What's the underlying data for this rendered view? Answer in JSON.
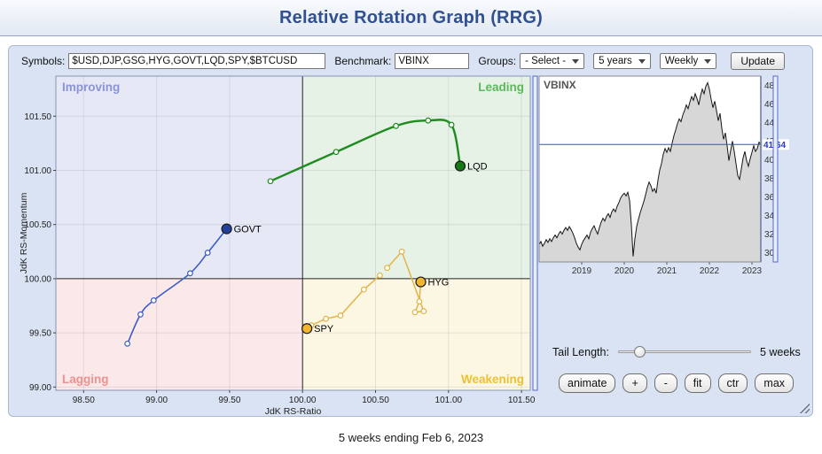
{
  "header": {
    "title": "Relative Rotation Graph (RRG)"
  },
  "toolbar": {
    "symbols_label": "Symbols:",
    "symbols_value": "$USD,DJP,GSG,HYG,GOVT,LQD,SPY,$BTCUSD",
    "benchmark_label": "Benchmark:",
    "benchmark_value": "VBINX",
    "groups_label": "Groups:",
    "groups_value": "- Select -",
    "period_value": "5 years",
    "interval_value": "Weekly",
    "update_label": "Update"
  },
  "chart_data": [
    {
      "type": "scatter",
      "title": "Relative Rotation Graph",
      "xlabel": "JdK RS-Ratio",
      "ylabel": "JdK RS-Momentum",
      "xlim": [
        98.31,
        101.56
      ],
      "ylim": [
        98.97,
        101.87
      ],
      "xticks": [
        98.5,
        99.0,
        99.5,
        100.0,
        100.5,
        101.0,
        101.5
      ],
      "yticks": [
        99.0,
        99.5,
        100.0,
        100.5,
        101.0,
        101.5
      ],
      "center": [
        100.0,
        100.0
      ],
      "quadrants": [
        {
          "name": "Improving",
          "position": "top-left",
          "color": "#e6e9f5",
          "label_color": "#8a93d8"
        },
        {
          "name": "Leading",
          "position": "top-right",
          "color": "#e6f2e6",
          "label_color": "#5cb85c"
        },
        {
          "name": "Lagging",
          "position": "bottom-left",
          "color": "#fbe8e8",
          "label_color": "#f09090"
        },
        {
          "name": "Weakening",
          "position": "bottom-right",
          "color": "#fcf7e2",
          "label_color": "#eec034"
        }
      ],
      "series": [
        {
          "name": "LQD",
          "color": "#1f8c1f",
          "dot_color": "#157a15",
          "width": 2.4,
          "smooth": true,
          "x": [
            99.78,
            100.23,
            100.64,
            100.86,
            101.02,
            101.08
          ],
          "y": [
            100.9,
            101.17,
            101.41,
            101.46,
            101.42,
            101.04
          ]
        },
        {
          "name": "GOVT",
          "color": "#3a5cc4",
          "dot_color": "#24409a",
          "width": 1.6,
          "smooth": true,
          "x": [
            98.8,
            98.89,
            98.98,
            99.23,
            99.35,
            99.48
          ],
          "y": [
            99.4,
            99.67,
            99.8,
            100.05,
            100.24,
            100.46
          ]
        },
        {
          "name": "HYG",
          "color": "#e2b34a",
          "dot_color": "#f0b62f",
          "width": 1.5,
          "smooth": false,
          "x": [
            100.58,
            100.68,
            100.83,
            100.77,
            100.8,
            100.81
          ],
          "y": [
            100.1,
            100.25,
            99.7,
            99.69,
            99.79,
            99.97
          ]
        },
        {
          "name": "SPY",
          "color": "#e2b34a",
          "dot_color": "#f0b62f",
          "width": 1.5,
          "smooth": false,
          "x": [
            100.53,
            100.42,
            100.26,
            100.16,
            100.06,
            100.03
          ],
          "y": [
            100.03,
            99.9,
            99.66,
            99.63,
            99.57,
            99.54
          ]
        }
      ]
    },
    {
      "type": "area",
      "title": "VBINX",
      "ylim": [
        29,
        49
      ],
      "yticks": [
        30,
        32,
        34,
        36,
        38,
        40,
        42,
        44,
        46,
        48
      ],
      "year_ticks": [
        {
          "index": 24,
          "label": "2019"
        },
        {
          "index": 48,
          "label": "2020"
        },
        {
          "index": 72,
          "label": "2021"
        },
        {
          "index": 96,
          "label": "2022"
        },
        {
          "index": 120,
          "label": "2023"
        }
      ],
      "last_price": 41.64,
      "values": [
        30.9,
        31.2,
        30.7,
        31.0,
        31.4,
        31.1,
        31.5,
        31.2,
        31.6,
        31.9,
        31.6,
        32.0,
        32.3,
        32.0,
        32.4,
        32.7,
        32.4,
        32.8,
        32.5,
        32.1,
        31.6,
        31.0,
        30.6,
        30.3,
        30.9,
        31.3,
        31.6,
        31.9,
        31.5,
        32.2,
        32.6,
        32.9,
        32.4,
        32.0,
        32.7,
        33.3,
        33.7,
        33.4,
        33.9,
        34.2,
        33.8,
        34.4,
        34.7,
        34.4,
        35.0,
        35.4,
        35.9,
        36.2,
        36.4,
        36.1,
        36.5,
        35.6,
        33.0,
        29.6,
        31.5,
        32.8,
        33.6,
        34.3,
        34.9,
        35.5,
        36.2,
        37.0,
        37.6,
        37.2,
        36.6,
        36.9,
        36.4,
        37.8,
        38.9,
        39.6,
        40.6,
        41.2,
        40.8,
        41.3,
        40.9,
        41.8,
        42.6,
        43.2,
        43.9,
        44.4,
        44.1,
        44.8,
        45.3,
        45.9,
        45.5,
        46.2,
        46.8,
        46.4,
        47.1,
        46.6,
        45.9,
        46.9,
        47.6,
        47.1,
        47.9,
        48.3,
        47.6,
        46.5,
        45.6,
        46.3,
        45.3,
        44.2,
        45.0,
        43.4,
        42.2,
        42.9,
        41.5,
        39.9,
        41.0,
        42.0,
        40.9,
        39.6,
        38.3,
        37.9,
        39.0,
        40.2,
        40.9,
        39.9,
        39.3,
        40.1,
        40.8,
        41.5,
        40.9,
        41.2,
        41.9,
        41.64
      ]
    }
  ],
  "tail": {
    "label": "Tail Length:",
    "value": "5 weeks"
  },
  "controls": {
    "animate": "animate",
    "zoom_in": "+",
    "zoom_out": "-",
    "fit": "fit",
    "ctr": "ctr",
    "max": "max"
  },
  "footer": {
    "text": "5 weeks ending Feb 6, 2023"
  }
}
